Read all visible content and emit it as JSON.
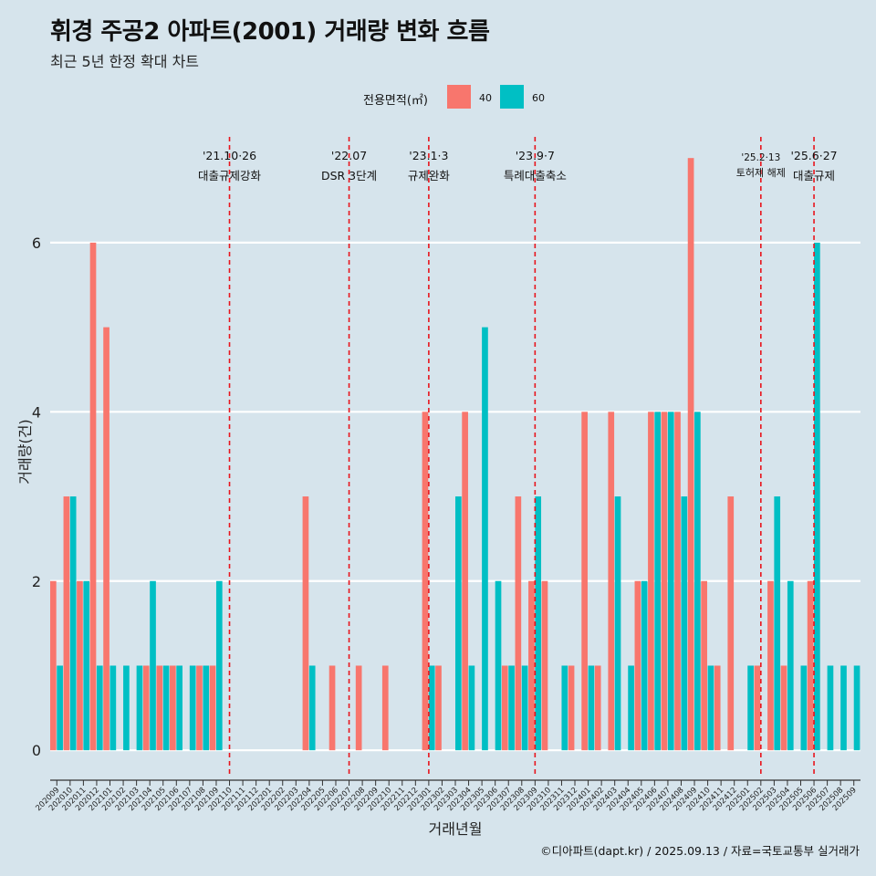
{
  "title": "휘경 주공2 아파트(2001) 거래량 변화 흐름",
  "subtitle": "최근 5년 한정 확대 차트",
  "caption": "©디아파트(dapt.kr) / 2025.09.13 / 자료=국토교통부 실거래가",
  "colors": {
    "background": "#d6e4ec",
    "grid": "#ffffff",
    "event_line": "#e8141c",
    "s40": "#f8766d",
    "s60": "#00bfc4"
  },
  "legend": {
    "title": "전용면적(㎡)",
    "items": [
      {
        "label": "40",
        "color": "#f8766d"
      },
      {
        "label": "60",
        "color": "#00bfc4"
      }
    ]
  },
  "chart_data": {
    "type": "bar",
    "xlabel": "거래년월",
    "ylabel": "거래량(건)",
    "ylim": [
      -0.3,
      7.25
    ],
    "yticks": [
      0,
      2,
      4,
      6
    ],
    "categories": [
      "202009",
      "202010",
      "202011",
      "202012",
      "202101",
      "202102",
      "202103",
      "202104",
      "202105",
      "202106",
      "202107",
      "202108",
      "202109",
      "202110",
      "202111",
      "202112",
      "202201",
      "202202",
      "202203",
      "202204",
      "202205",
      "202206",
      "202207",
      "202208",
      "202209",
      "202210",
      "202211",
      "202212",
      "202301",
      "202302",
      "202303",
      "202304",
      "202305",
      "202306",
      "202307",
      "202308",
      "202309",
      "202310",
      "202311",
      "202312",
      "202401",
      "202402",
      "202403",
      "202404",
      "202405",
      "202406",
      "202407",
      "202408",
      "202409",
      "202410",
      "202411",
      "202412",
      "202501",
      "202502",
      "202503",
      "202504",
      "202505",
      "202506",
      "202507",
      "202508",
      "202509"
    ],
    "series": [
      {
        "name": "40",
        "color": "#f8766d",
        "values": [
          2,
          3,
          2,
          6,
          5,
          0,
          0,
          1,
          1,
          1,
          0,
          1,
          1,
          0,
          0,
          0,
          0,
          0,
          0,
          3,
          0,
          1,
          0,
          1,
          0,
          1,
          0,
          0,
          4,
          1,
          0,
          4,
          0,
          0,
          1,
          3,
          2,
          2,
          0,
          1,
          4,
          1,
          4,
          0,
          2,
          4,
          4,
          4,
          7,
          2,
          1,
          3,
          0,
          1,
          2,
          1,
          0,
          2,
          0,
          0,
          0
        ]
      },
      {
        "name": "60",
        "color": "#00bfc4",
        "values": [
          1,
          3,
          2,
          1,
          1,
          1,
          1,
          2,
          1,
          1,
          1,
          1,
          2,
          0,
          0,
          0,
          0,
          0,
          0,
          1,
          0,
          0,
          0,
          0,
          0,
          0,
          0,
          0,
          1,
          0,
          3,
          1,
          5,
          2,
          1,
          1,
          3,
          0,
          1,
          0,
          1,
          0,
          3,
          1,
          2,
          4,
          4,
          3,
          4,
          1,
          0,
          0,
          1,
          0,
          3,
          2,
          1,
          6,
          1,
          1,
          1
        ]
      }
    ],
    "events": [
      {
        "at": "202110",
        "date": "'21.10·26",
        "label": "대출규제강화"
      },
      {
        "at": "202207",
        "date": "'22.07",
        "label": "DSR 3단계"
      },
      {
        "at": "202301",
        "date": "'23.1·3",
        "label": "규제완화"
      },
      {
        "at": "202309",
        "date": "'23.9·7",
        "label": "특례대출축소"
      },
      {
        "at": "202502",
        "date": "'25.2·13",
        "label": "토허제 해제"
      },
      {
        "at": "202506",
        "date": "'25.6·27",
        "label": "대출규제"
      }
    ]
  }
}
